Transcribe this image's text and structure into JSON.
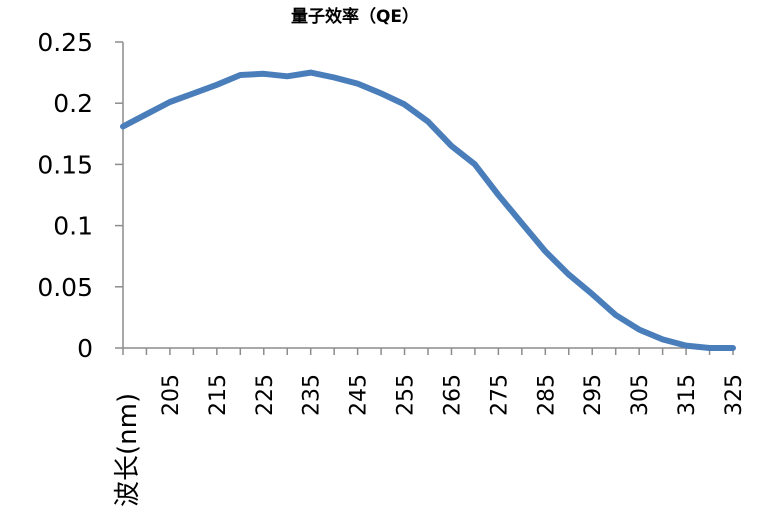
{
  "chart_data": {
    "type": "line",
    "title": "量子效率（QE）",
    "xlabel": "波长(nm)",
    "ylabel": "",
    "x_tick_labels": [
      "205",
      "215",
      "225",
      "235",
      "245",
      "255",
      "265",
      "275",
      "285",
      "295",
      "305",
      "315",
      "325"
    ],
    "y_tick_labels": [
      "0",
      "0.05",
      "0.1",
      "0.15",
      "0.2",
      "0.25"
    ],
    "xlim": [
      195,
      325
    ],
    "ylim": [
      0,
      0.25
    ],
    "x_minor_step": 5,
    "grid": false,
    "legend": "none",
    "series": [
      {
        "color": "#4a7ebb",
        "x": [
          195,
          200,
          205,
          210,
          215,
          220,
          225,
          230,
          235,
          240,
          245,
          250,
          255,
          260,
          265,
          270,
          275,
          280,
          285,
          290,
          295,
          300,
          305,
          310,
          315,
          320,
          325
        ],
        "y": [
          0.181,
          0.191,
          0.201,
          0.208,
          0.215,
          0.223,
          0.224,
          0.222,
          0.225,
          0.221,
          0.216,
          0.208,
          0.199,
          0.185,
          0.165,
          0.15,
          0.125,
          0.102,
          0.079,
          0.06,
          0.044,
          0.027,
          0.015,
          0.007,
          0.002,
          0.0,
          0.0
        ]
      }
    ]
  }
}
